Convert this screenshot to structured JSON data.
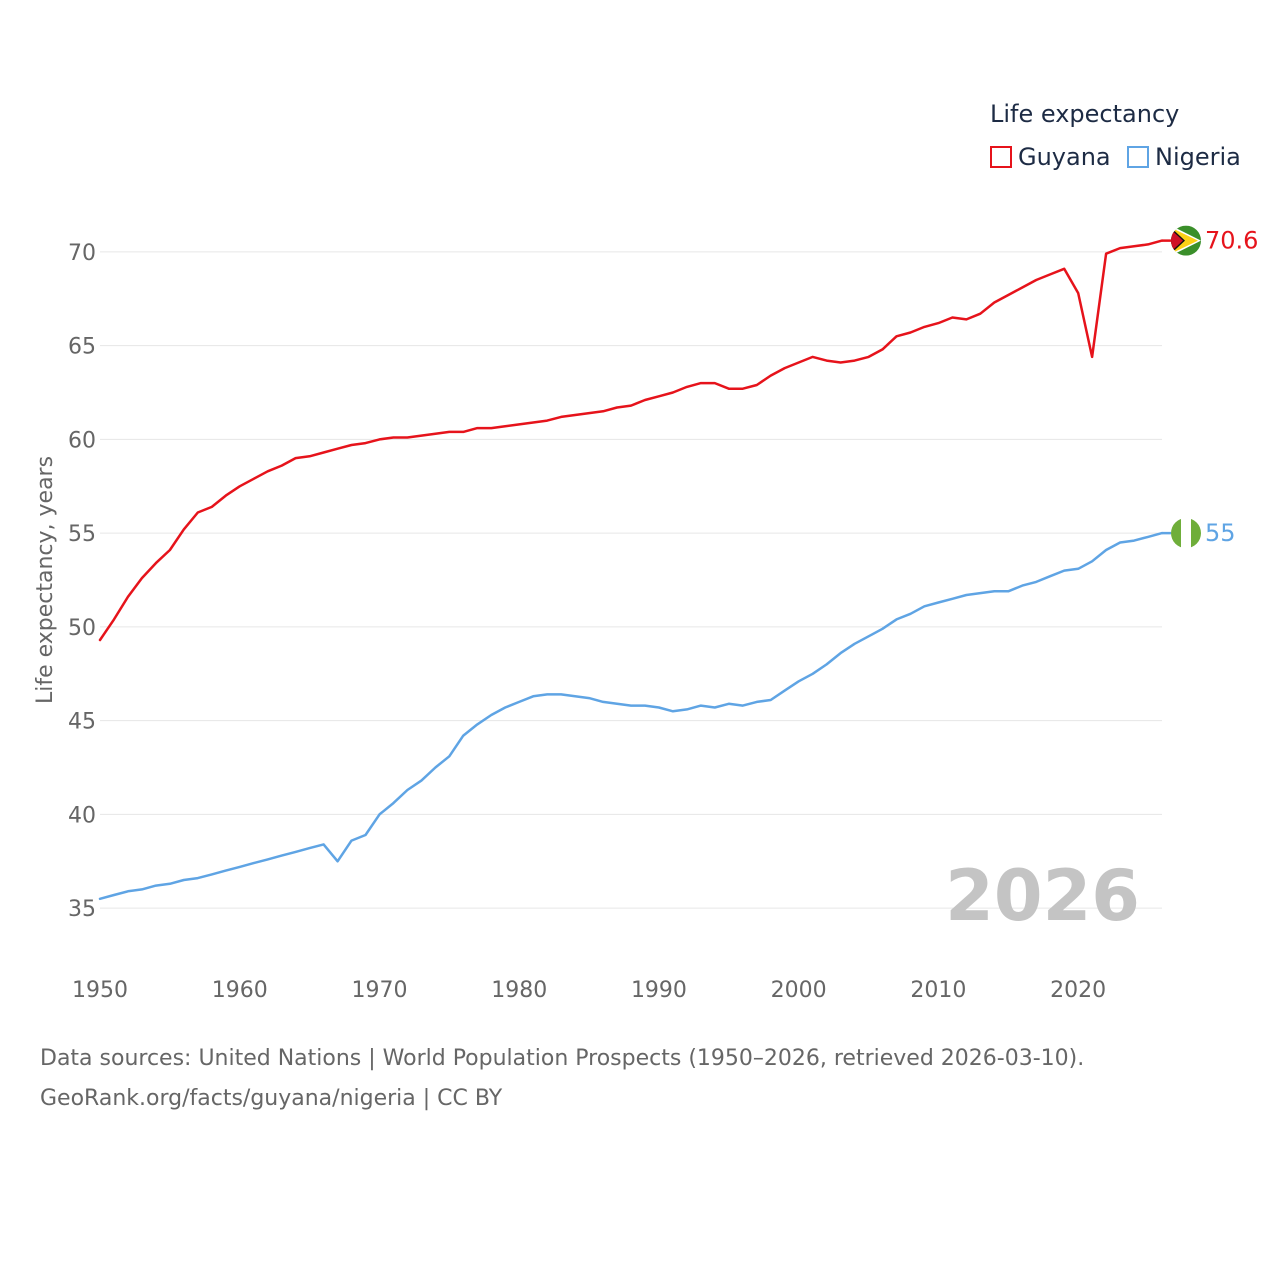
{
  "chart_data": {
    "type": "line",
    "title": "",
    "ylabel": "Life expectancy, years",
    "xlabel": "",
    "xlim": [
      1950,
      2026
    ],
    "ylim": [
      32.5,
      72.5
    ],
    "x_ticks": [
      "1950",
      "1960",
      "1970",
      "1980",
      "1990",
      "2000",
      "2010",
      "2020"
    ],
    "y_ticks": [
      "35",
      "40",
      "45",
      "50",
      "55",
      "60",
      "65",
      "70"
    ],
    "legend_title": "Life expectancy",
    "legend_position": "top-right",
    "year_label": "2026",
    "x": [
      1950,
      1951,
      1952,
      1953,
      1954,
      1955,
      1956,
      1957,
      1958,
      1959,
      1960,
      1961,
      1962,
      1963,
      1964,
      1965,
      1966,
      1967,
      1968,
      1969,
      1970,
      1971,
      1972,
      1973,
      1974,
      1975,
      1976,
      1977,
      1978,
      1979,
      1980,
      1981,
      1982,
      1983,
      1984,
      1985,
      1986,
      1987,
      1988,
      1989,
      1990,
      1991,
      1992,
      1993,
      1994,
      1995,
      1996,
      1997,
      1998,
      1999,
      2000,
      2001,
      2002,
      2003,
      2004,
      2005,
      2006,
      2007,
      2008,
      2009,
      2010,
      2011,
      2012,
      2013,
      2014,
      2015,
      2016,
      2017,
      2018,
      2019,
      2020,
      2021,
      2022,
      2023,
      2024,
      2025,
      2026
    ],
    "series": [
      {
        "name": "Guyana",
        "color": "#e6131b",
        "end_label": "70.6",
        "flag": "guyana-flag",
        "values": [
          49.3,
          50.4,
          51.6,
          52.6,
          53.4,
          54.1,
          55.2,
          56.1,
          56.4,
          57.0,
          57.5,
          57.9,
          58.3,
          58.6,
          59.0,
          59.1,
          59.3,
          59.5,
          59.7,
          59.8,
          60.0,
          60.1,
          60.1,
          60.2,
          60.3,
          60.4,
          60.4,
          60.6,
          60.6,
          60.7,
          60.8,
          60.9,
          61.0,
          61.2,
          61.3,
          61.4,
          61.5,
          61.7,
          61.8,
          62.1,
          62.3,
          62.5,
          62.8,
          63.0,
          63.0,
          62.7,
          62.7,
          62.9,
          63.4,
          63.8,
          64.1,
          64.4,
          64.2,
          64.1,
          64.2,
          64.4,
          64.8,
          65.5,
          65.7,
          66.0,
          66.2,
          66.5,
          66.4,
          66.7,
          67.3,
          67.7,
          68.1,
          68.5,
          68.8,
          69.1,
          67.8,
          64.4,
          69.9,
          70.2,
          70.3,
          70.4,
          70.6
        ]
      },
      {
        "name": "Nigeria",
        "color": "#5fa4e4",
        "end_label": "55",
        "flag": "nigeria-flag",
        "values": [
          35.5,
          35.7,
          35.9,
          36.0,
          36.2,
          36.3,
          36.5,
          36.6,
          36.8,
          37.0,
          37.2,
          37.4,
          37.6,
          37.8,
          38.0,
          38.2,
          38.4,
          37.5,
          38.6,
          38.9,
          40.0,
          40.6,
          41.3,
          41.8,
          42.5,
          43.1,
          44.2,
          44.8,
          45.3,
          45.7,
          46.0,
          46.3,
          46.4,
          46.4,
          46.3,
          46.2,
          46.0,
          45.9,
          45.8,
          45.8,
          45.7,
          45.5,
          45.6,
          45.8,
          45.7,
          45.9,
          45.8,
          46.0,
          46.1,
          46.6,
          47.1,
          47.5,
          48.0,
          48.6,
          49.1,
          49.5,
          49.9,
          50.4,
          50.7,
          51.1,
          51.3,
          51.5,
          51.7,
          51.8,
          51.9,
          51.9,
          52.2,
          52.4,
          52.7,
          53.0,
          53.1,
          53.5,
          54.1,
          54.5,
          54.6,
          54.8,
          55.0
        ]
      }
    ]
  },
  "source": {
    "line1": "Data sources: United Nations | World Population Prospects (1950–2026, retrieved 2026-03-10).",
    "line2": "GeoRank.org/facts/guyana/nigeria | CC BY"
  }
}
